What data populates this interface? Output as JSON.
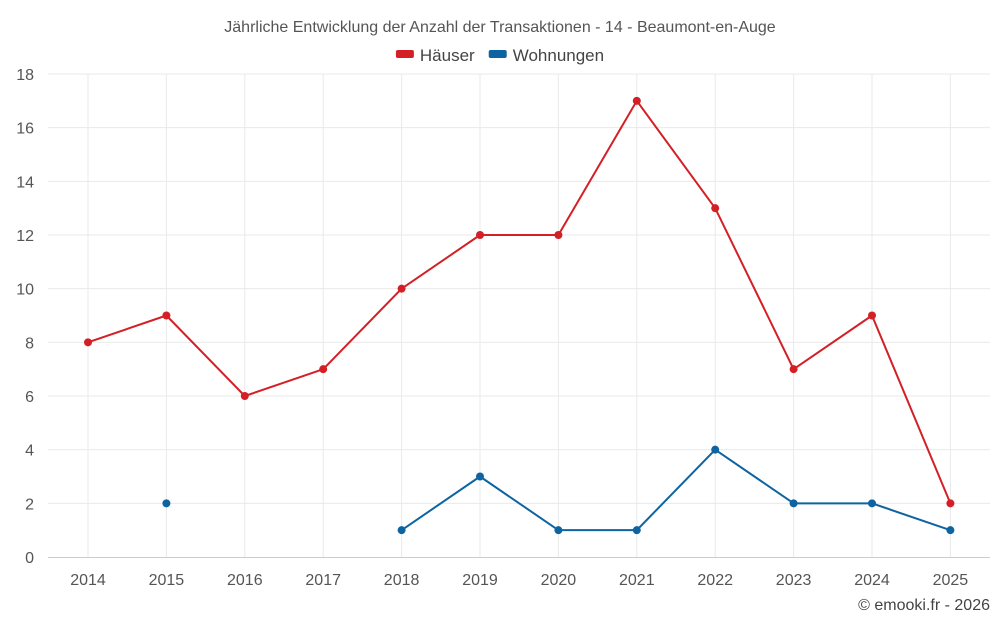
{
  "chart_data": {
    "type": "line",
    "title": "Jährliche Entwicklung der Anzahl der Transaktionen - 14 - Beaumont-en-Auge",
    "categories": [
      "2014",
      "2015",
      "2016",
      "2017",
      "2018",
      "2019",
      "2020",
      "2021",
      "2022",
      "2023",
      "2024",
      "2025"
    ],
    "ylim": [
      0,
      18
    ],
    "yticks": [
      0,
      2,
      4,
      6,
      8,
      10,
      12,
      14,
      16,
      18
    ],
    "grid": true,
    "legend_position": "top-center",
    "series": [
      {
        "name": "Häuser",
        "color": "#d32027",
        "values": [
          8,
          9,
          6,
          7,
          10,
          12,
          12,
          17,
          13,
          7,
          9,
          2
        ]
      },
      {
        "name": "Wohnungen",
        "color": "#0d64a0",
        "values": [
          null,
          2,
          null,
          null,
          1,
          3,
          1,
          1,
          4,
          2,
          2,
          1
        ]
      }
    ]
  },
  "credit": "© emooki.fr - 2026"
}
